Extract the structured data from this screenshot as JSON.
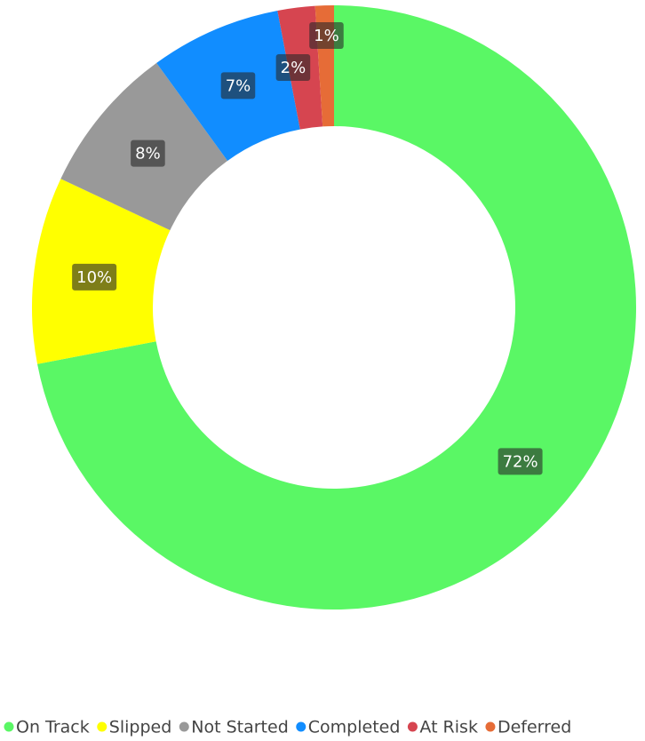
{
  "chart_data": {
    "type": "pie",
    "donut": true,
    "categories": [
      "On Track",
      "Slipped",
      "Not Started",
      "Completed",
      "At Risk",
      "Deferred"
    ],
    "values": [
      72,
      10,
      8,
      7,
      2,
      1
    ],
    "value_labels": [
      "72%",
      "10%",
      "8%",
      "7%",
      "2%",
      "1%"
    ],
    "colors": [
      "#5af765",
      "#ffff00",
      "#999999",
      "#118dff",
      "#d64550",
      "#e66c37"
    ],
    "legend": "bottom"
  }
}
